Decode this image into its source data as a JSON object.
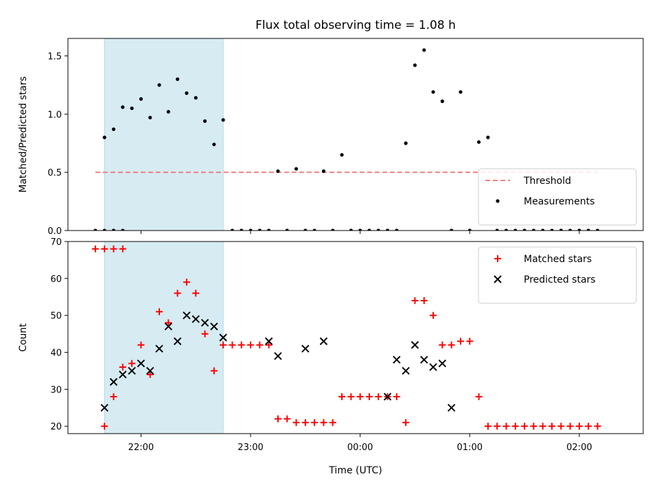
{
  "figure": {
    "title": "Flux total observing time = 1.08 h",
    "xlabel": "Time (UTC)",
    "x_ticks": [
      "22:00",
      "23:00",
      "00:00",
      "01:00",
      "02:00"
    ]
  },
  "chart_data": [
    {
      "type": "scatter",
      "ylabel": "Matched/Predicted stars",
      "xlim": [
        "21:20",
        "02:35"
      ],
      "ylim": [
        0,
        1.65
      ],
      "y_ticks": [
        "0.0",
        "0.5",
        "1.0",
        "1.5"
      ],
      "shaded_region": {
        "x_start": "21:40",
        "x_end": "22:45",
        "color": "#add8e6"
      },
      "threshold": {
        "name": "Threshold",
        "y": 0.5,
        "x_start": "21:35",
        "x_end": "02:10",
        "color": "#f08080"
      },
      "legend": {
        "position": "lower right",
        "entries": [
          "Threshold",
          "Measurements"
        ]
      },
      "series": [
        {
          "name": "Measurements",
          "color": "#000000",
          "x": [
            "21:35",
            "21:40",
            "21:45",
            "21:50",
            "21:40",
            "21:45",
            "21:50",
            "21:55",
            "22:00",
            "22:05",
            "22:10",
            "22:15",
            "22:20",
            "22:25",
            "22:30",
            "22:35",
            "22:40",
            "22:45",
            "22:50",
            "22:55",
            "23:00",
            "23:05",
            "23:10",
            "23:15",
            "23:20",
            "23:25",
            "23:30",
            "23:35",
            "23:40",
            "23:45",
            "23:50",
            "23:55",
            "00:00",
            "00:05",
            "00:10",
            "00:15",
            "00:20",
            "00:25",
            "00:30",
            "00:35",
            "00:40",
            "00:45",
            "00:50",
            "00:55",
            "01:00",
            "01:05",
            "01:10",
            "01:15",
            "01:20",
            "01:25",
            "01:30",
            "01:35",
            "01:40",
            "01:45",
            "01:50",
            "01:55",
            "02:00",
            "02:05",
            "02:10"
          ],
          "y": [
            0,
            0,
            0,
            0,
            0.8,
            0.87,
            1.06,
            1.05,
            1.13,
            0.97,
            1.25,
            1.02,
            1.3,
            1.18,
            1.14,
            0.94,
            0.74,
            0.95,
            0,
            0,
            0,
            0,
            0,
            0.51,
            0,
            0.53,
            0,
            0,
            0.51,
            0,
            0.65,
            0,
            0,
            0,
            0,
            0,
            0,
            0.75,
            1.42,
            1.55,
            1.19,
            1.11,
            0,
            1.19,
            0,
            0.76,
            0.8,
            0,
            0,
            0,
            0,
            0,
            0,
            0,
            0,
            0,
            0,
            0,
            0
          ]
        }
      ]
    },
    {
      "type": "scatter",
      "ylabel": "Count",
      "xlim": [
        "21:20",
        "02:35"
      ],
      "ylim": [
        18,
        70
      ],
      "y_ticks": [
        "20",
        "30",
        "40",
        "50",
        "60",
        "70"
      ],
      "shaded_region": {
        "x_start": "21:40",
        "x_end": "22:45",
        "color": "#add8e6"
      },
      "legend": {
        "position": "upper right",
        "entries": [
          "Matched stars",
          "Predicted stars"
        ]
      },
      "series": [
        {
          "name": "Matched stars",
          "marker": "+",
          "color": "#ff0000",
          "x": [
            "21:35",
            "21:40",
            "21:45",
            "21:50",
            "21:40",
            "21:45",
            "21:50",
            "21:55",
            "22:00",
            "22:05",
            "22:10",
            "22:15",
            "22:20",
            "22:25",
            "22:30",
            "22:35",
            "22:40",
            "22:45",
            "22:50",
            "22:55",
            "23:00",
            "23:05",
            "23:10",
            "23:15",
            "23:20",
            "23:25",
            "23:30",
            "23:35",
            "23:40",
            "23:45",
            "23:50",
            "23:55",
            "00:00",
            "00:05",
            "00:10",
            "00:15",
            "00:20",
            "00:25",
            "00:30",
            "00:35",
            "00:40",
            "00:45",
            "00:50",
            "00:55",
            "01:00",
            "01:05",
            "01:10",
            "01:15",
            "01:20",
            "01:25",
            "01:30",
            "01:35",
            "01:40",
            "01:45",
            "01:50",
            "01:55",
            "02:00",
            "02:05",
            "02:10"
          ],
          "y": [
            68,
            68,
            68,
            68,
            20,
            28,
            36,
            37,
            42,
            34,
            51,
            48,
            56,
            59,
            56,
            45,
            35,
            42,
            42,
            42,
            42,
            42,
            42,
            22,
            22,
            21,
            21,
            21,
            21,
            21,
            28,
            28,
            28,
            28,
            28,
            28,
            28,
            21,
            54,
            54,
            50,
            42,
            42,
            43,
            43,
            28,
            20,
            20,
            20,
            20,
            20,
            20,
            20,
            20,
            20,
            20,
            20,
            20,
            20
          ]
        },
        {
          "name": "Predicted stars",
          "marker": "x",
          "color": "#000000",
          "x": [
            "21:40",
            "21:45",
            "21:50",
            "21:55",
            "22:00",
            "22:05",
            "22:10",
            "22:15",
            "22:20",
            "22:25",
            "22:30",
            "22:35",
            "22:40",
            "22:45",
            "23:10",
            "23:15",
            "23:30",
            "23:40",
            "00:15",
            "00:20",
            "00:25",
            "00:30",
            "00:35",
            "00:40",
            "00:45",
            "00:50"
          ],
          "y": [
            25,
            32,
            34,
            35,
            37,
            35,
            41,
            47,
            43,
            50,
            49,
            48,
            47,
            44,
            43,
            39,
            41,
            43,
            28,
            38,
            35,
            42,
            38,
            36,
            37,
            25
          ]
        }
      ]
    }
  ]
}
